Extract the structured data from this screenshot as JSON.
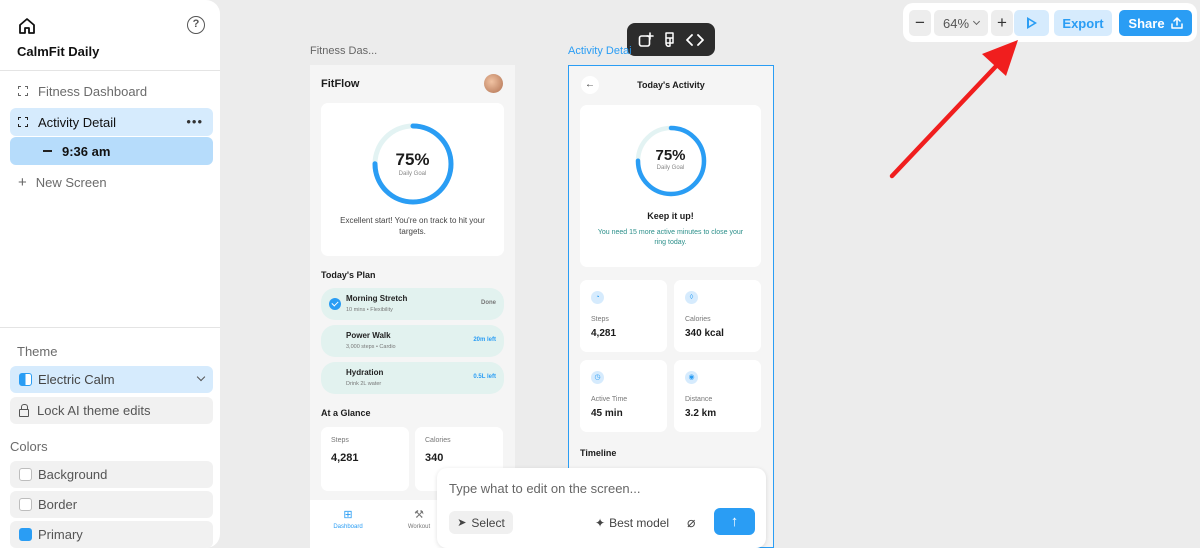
{
  "sidebar": {
    "project_name": "CalmFit Daily",
    "screens": [
      {
        "label": "Fitness Dashboard"
      },
      {
        "label": "Activity Detail"
      }
    ],
    "sub_item_label": "9:36 am",
    "new_screen_label": "New Screen",
    "more_glyph": "•••",
    "theme_heading": "Theme",
    "theme_value": "Electric Calm",
    "lock_label": "Lock AI theme edits",
    "colors_heading": "Colors",
    "colors": [
      {
        "label": "Background"
      },
      {
        "label": "Border"
      },
      {
        "label": "Primary",
        "hex": "#2a9df4"
      }
    ]
  },
  "toolbar": {
    "zoom_value": "64%",
    "export_label": "Export",
    "share_label": "Share"
  },
  "canvas": {
    "label_1": "Fitness Das...",
    "label_2": "Activity Detai"
  },
  "phone1": {
    "brand": "FitFlow",
    "ring_percent": "75%",
    "ring_progress": 0.75,
    "ring_label": "Daily Goal",
    "ring_message": "Excellent start! You're on track to hit your targets.",
    "plan_heading": "Today's Plan",
    "plan": [
      {
        "name": "Morning Stretch",
        "sub": "10 mins • Flexibility",
        "tag": "Done"
      },
      {
        "name": "Power Walk",
        "sub": "3,000 steps • Cardio",
        "tag": "20m left"
      },
      {
        "name": "Hydration",
        "sub": "Drink 2L water",
        "tag": "0.5L left"
      }
    ],
    "glance_heading": "At a Glance",
    "glance": [
      {
        "label": "Steps",
        "value": "4,281"
      },
      {
        "label": "Calories",
        "value": "340"
      }
    ],
    "nav": [
      {
        "label": "Dashboard"
      },
      {
        "label": "Workout"
      }
    ]
  },
  "phone2": {
    "title": "Today's Activity",
    "ring_percent": "75%",
    "ring_progress": 0.75,
    "ring_label": "Daily Goal",
    "headline": "Keep it up!",
    "message": "You need 15 more active minutes to close your ring today.",
    "stats": [
      {
        "label": "Steps",
        "value": "4,281"
      },
      {
        "label": "Calories",
        "value": "340 kcal"
      },
      {
        "label": "Active Time",
        "value": "45 min"
      },
      {
        "label": "Distance",
        "value": "3.2 km"
      }
    ],
    "timeline_heading": "Timeline"
  },
  "prompt": {
    "placeholder": "Type what to edit on the screen...",
    "select_label": "Select",
    "model_label": "Best model"
  },
  "colors": {
    "accent": "#2a9df4",
    "annotation_arrow": "#f01e1e"
  }
}
